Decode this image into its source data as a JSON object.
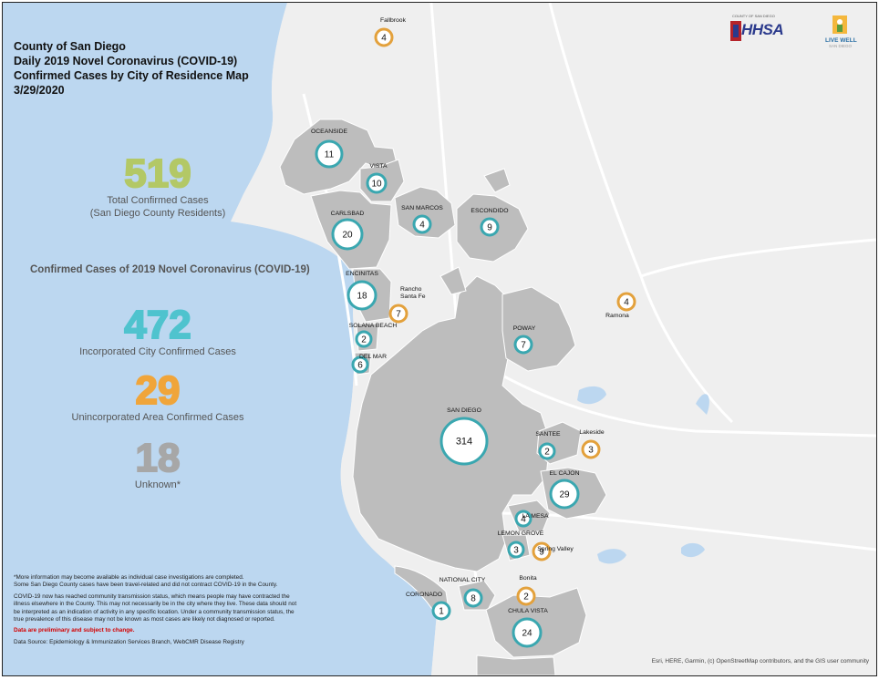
{
  "title_lines": [
    "County of San Diego",
    "Daily 2019 Novel Coronavirus (COVID-19)",
    "Confirmed Cases by City of Residence Map",
    "3/29/2020"
  ],
  "total": {
    "value": "519",
    "label1": "Total Confirmed Cases",
    "label2": "(San Diego County Residents)",
    "color": "#b3c866"
  },
  "section_heading": "Confirmed Cases of 2019 Novel Coronavirus (COVID-19)",
  "incorporated": {
    "value": "472",
    "label": "Incorporated City Confirmed Cases",
    "color": "#4fc3ce"
  },
  "unincorporated": {
    "value": "29",
    "label": "Unincorporated Area Confirmed Cases",
    "color": "#f0a53a"
  },
  "unknown": {
    "value": "18",
    "label": "Unknown*",
    "color": "#a7a7a7"
  },
  "logos": {
    "hhsa": "HHSA",
    "hhsa_small": "COUNTY OF SAN DIEGO",
    "live_well": "LIVE WELL",
    "live_well_sub": "SAN DIEGO"
  },
  "notes": {
    "n1": "*More information may become available as individual case investigations are completed.",
    "n2": "Some San Diego County cases have been travel-related and did not contract COVID-19 in the County.",
    "n3": "COVID-19 now has reached community transmission status, which means people may have contracted the illness elsewhere in the County. This may not necessarily be in the city where they live. These data should not be interpreted as an indication of activity in any specific location. Under a community transmission status, the true prevalence of this disease may not be known as most cases are likely not diagnosed or reported.",
    "n4": "Data are preliminary and subject to change.",
    "n5": "Data Source: Epidemiology & Immunization Services Branch, WebCMR Disease Registry"
  },
  "credit": "Esri, HERE, Garmin, (c) OpenStreetMap contributors, and the GIS user community",
  "colors": {
    "city_ring": "#3aa7b0",
    "unincorporated_ring": "#e3a13c",
    "ocean": "#bcd7f0",
    "city_area": "#bdbdbd",
    "land": "#eeeeee"
  },
  "places": [
    {
      "name": "Fallbrook",
      "count": "4",
      "type": "unincorporated"
    },
    {
      "name": "OCEANSIDE",
      "count": "11",
      "type": "city"
    },
    {
      "name": "VISTA",
      "count": "10",
      "type": "city"
    },
    {
      "name": "SAN MARCOS",
      "count": "4",
      "type": "city"
    },
    {
      "name": "ESCONDIDO",
      "count": "9",
      "type": "city"
    },
    {
      "name": "CARLSBAD",
      "count": "20",
      "type": "city"
    },
    {
      "name": "ENCINITAS",
      "count": "18",
      "type": "city"
    },
    {
      "name": "Rancho Santa Fe",
      "count": "7",
      "type": "unincorporated"
    },
    {
      "name": "Ramona",
      "count": "4",
      "type": "unincorporated"
    },
    {
      "name": "SOLANA BEACH",
      "count": "2",
      "type": "city"
    },
    {
      "name": "POWAY",
      "count": "7",
      "type": "city"
    },
    {
      "name": "DEL MAR",
      "count": "6",
      "type": "city"
    },
    {
      "name": "SAN DIEGO",
      "count": "314",
      "type": "city"
    },
    {
      "name": "SANTEE",
      "count": "2",
      "type": "city"
    },
    {
      "name": "Lakeside",
      "count": "3",
      "type": "unincorporated"
    },
    {
      "name": "EL CAJON",
      "count": "29",
      "type": "city"
    },
    {
      "name": "LA MESA",
      "count": "4",
      "type": "city"
    },
    {
      "name": "LEMON GROVE",
      "count": "3",
      "type": "city"
    },
    {
      "name": "Spring Valley",
      "count": "9",
      "type": "unincorporated"
    },
    {
      "name": "NATIONAL CITY",
      "count": "8",
      "type": "city"
    },
    {
      "name": "Bonita",
      "count": "2",
      "type": "unincorporated"
    },
    {
      "name": "CORONADO",
      "count": "1",
      "type": "city"
    },
    {
      "name": "CHULA VISTA",
      "count": "24",
      "type": "city"
    }
  ]
}
